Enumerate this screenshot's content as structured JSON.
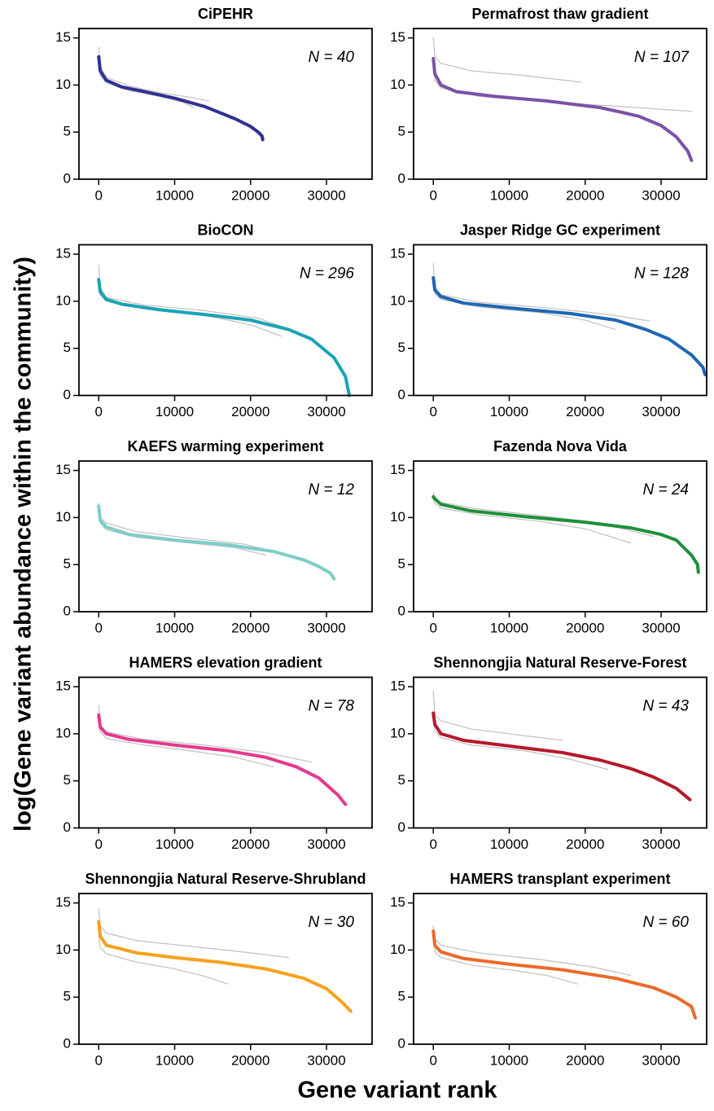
{
  "y_label": "log(Gene variant abundance within the community)",
  "x_label": "Gene variant rank",
  "chart_data": [
    {
      "type": "line",
      "title": "CiPEHR",
      "annotation": "N = 40",
      "xlim": [
        -2600,
        36000
      ],
      "ylim": [
        0,
        16
      ],
      "xticks": [
        0,
        10000,
        20000,
        30000
      ],
      "yticks": [
        0,
        5,
        10,
        15
      ],
      "series": [
        {
          "color": "#c4c4c4",
          "x": [
            0,
            200,
            1000,
            4000,
            8000,
            12000,
            14500
          ],
          "values": [
            14,
            12,
            10.8,
            9.9,
            9.2,
            8.7,
            8.3
          ]
        },
        {
          "color": "#c4c4c4",
          "x": [
            0,
            200,
            1000,
            4000,
            8000,
            11000,
            12500
          ],
          "values": [
            12.5,
            11,
            10.2,
            9.4,
            8.8,
            8.2,
            7.6
          ]
        },
        {
          "color": "#2e3192",
          "x": [
            0,
            200,
            1000,
            3000,
            6000,
            10000,
            14000,
            18000,
            20000,
            21000,
            21500,
            21600
          ],
          "values": [
            13,
            11.5,
            10.5,
            9.8,
            9.3,
            8.6,
            7.7,
            6.4,
            5.6,
            5,
            4.6,
            4.2
          ]
        }
      ]
    },
    {
      "type": "line",
      "title": "Permafrost thaw gradient",
      "annotation": "N = 107",
      "xlim": [
        -2600,
        36000
      ],
      "ylim": [
        0,
        16
      ],
      "xticks": [
        0,
        10000,
        20000,
        30000
      ],
      "yticks": [
        0,
        5,
        10,
        15
      ],
      "series": [
        {
          "color": "#c4c4c4",
          "x": [
            0,
            200,
            1000,
            5000,
            12000,
            19500
          ],
          "values": [
            15,
            13,
            12.3,
            11.5,
            11,
            10.3
          ]
        },
        {
          "color": "#c4c4c4",
          "x": [
            0,
            200,
            1000,
            6000,
            15000,
            25000,
            34000
          ],
          "values": [
            12,
            10.5,
            9.7,
            8.8,
            8.2,
            7.7,
            7.2
          ]
        },
        {
          "color": "#7b52a6",
          "x": [
            0,
            200,
            1000,
            3000,
            8000,
            15000,
            22000,
            27000,
            30000,
            32000,
            33500,
            34000
          ],
          "values": [
            12.8,
            11.2,
            10,
            9.3,
            8.8,
            8.3,
            7.6,
            6.7,
            5.7,
            4.5,
            3,
            2
          ]
        }
      ]
    },
    {
      "type": "line",
      "title": "BioCON",
      "annotation": "N = 296",
      "xlim": [
        -2600,
        36000
      ],
      "ylim": [
        0,
        16
      ],
      "xticks": [
        0,
        10000,
        20000,
        30000
      ],
      "yticks": [
        0,
        5,
        10,
        15
      ],
      "series": [
        {
          "color": "#c4c4c4",
          "x": [
            0,
            200,
            1000,
            6000,
            14000,
            21000,
            26000
          ],
          "values": [
            13.8,
            11.5,
            10.4,
            9.6,
            9,
            8.2,
            6.8
          ]
        },
        {
          "color": "#c4c4c4",
          "x": [
            0,
            200,
            1000,
            6000,
            14000,
            20000,
            24000
          ],
          "values": [
            12,
            10.7,
            10,
            9.2,
            8.5,
            7.5,
            6.3
          ]
        },
        {
          "color": "#1aa3b5",
          "x": [
            0,
            200,
            1000,
            3000,
            8000,
            15000,
            20000,
            25000,
            28000,
            31000,
            32500,
            33000
          ],
          "values": [
            12.3,
            11,
            10.2,
            9.7,
            9.1,
            8.5,
            8,
            7,
            6,
            4,
            2,
            0
          ]
        }
      ]
    },
    {
      "type": "line",
      "title": "Jasper Ridge GC experiment",
      "annotation": "N = 128",
      "xlim": [
        -2600,
        36000
      ],
      "ylim": [
        0,
        16
      ],
      "xticks": [
        0,
        10000,
        20000,
        30000
      ],
      "yticks": [
        0,
        5,
        10,
        15
      ],
      "series": [
        {
          "color": "#c4c4c4",
          "x": [
            0,
            200,
            1000,
            6000,
            15000,
            23000,
            28500
          ],
          "values": [
            14,
            11.5,
            10.7,
            9.9,
            9.3,
            8.6,
            7.9
          ]
        },
        {
          "color": "#c4c4c4",
          "x": [
            0,
            200,
            1000,
            6000,
            14000,
            20000,
            24000
          ],
          "values": [
            12,
            10.8,
            10.2,
            9.4,
            8.8,
            8,
            7
          ]
        },
        {
          "color": "#1f66b5",
          "x": [
            0,
            200,
            1000,
            4000,
            10000,
            18000,
            24000,
            28000,
            31000,
            34000,
            35500,
            35800
          ],
          "values": [
            12.5,
            11.2,
            10.5,
            9.8,
            9.3,
            8.7,
            8,
            7,
            6,
            4.3,
            3,
            2.2
          ]
        }
      ]
    },
    {
      "type": "line",
      "title": "KAEFS warming experiment",
      "annotation": "N = 12",
      "xlim": [
        -2600,
        36000
      ],
      "ylim": [
        0,
        16
      ],
      "xticks": [
        0,
        10000,
        20000,
        30000
      ],
      "yticks": [
        0,
        5,
        10,
        15
      ],
      "series": [
        {
          "color": "#c4c4c4",
          "x": [
            0,
            200,
            1000,
            5000,
            12000,
            19000,
            23500
          ],
          "values": [
            11.5,
            10,
            9.4,
            8.5,
            7.8,
            7.2,
            6.3
          ]
        },
        {
          "color": "#c4c4c4",
          "x": [
            0,
            200,
            1000,
            5000,
            12000,
            18000,
            22000
          ],
          "values": [
            10.8,
            9.4,
            8.7,
            7.9,
            7.3,
            6.8,
            6
          ]
        },
        {
          "color": "#7ecdc8",
          "x": [
            0,
            200,
            1000,
            4000,
            10000,
            17000,
            23000,
            27000,
            29000,
            30500,
            31000
          ],
          "values": [
            11.2,
            9.7,
            9,
            8.2,
            7.6,
            7.1,
            6.4,
            5.5,
            4.8,
            4.1,
            3.5
          ]
        }
      ]
    },
    {
      "type": "line",
      "title": "Fazenda Nova Vida",
      "annotation": "N = 24",
      "xlim": [
        -2600,
        36000
      ],
      "ylim": [
        0,
        16
      ],
      "xticks": [
        0,
        10000,
        20000,
        30000
      ],
      "yticks": [
        0,
        5,
        10,
        15
      ],
      "series": [
        {
          "color": "#c4c4c4",
          "x": [
            0,
            200,
            1000,
            6000,
            14000,
            22000,
            29000
          ],
          "values": [
            12.6,
            12,
            11.6,
            10.9,
            10.2,
            9.4,
            8
          ]
        },
        {
          "color": "#c4c4c4",
          "x": [
            0,
            200,
            1000,
            6000,
            14000,
            20000,
            26000
          ],
          "values": [
            12,
            11.5,
            11,
            10.3,
            9.6,
            8.8,
            7.3
          ]
        },
        {
          "color": "#1f8f3a",
          "x": [
            0,
            200,
            1000,
            5000,
            12000,
            20000,
            26000,
            30000,
            32000,
            34000,
            34800,
            34900
          ],
          "values": [
            12.2,
            12,
            11.4,
            10.7,
            10.1,
            9.5,
            8.9,
            8.2,
            7.6,
            6,
            5,
            4.2
          ]
        }
      ]
    },
    {
      "type": "line",
      "title": "HAMERS elevation gradient",
      "annotation": "N = 78",
      "xlim": [
        -2600,
        36000
      ],
      "ylim": [
        0,
        16
      ],
      "xticks": [
        0,
        10000,
        20000,
        30000
      ],
      "yticks": [
        0,
        5,
        10,
        15
      ],
      "series": [
        {
          "color": "#c4c4c4",
          "x": [
            0,
            200,
            1000,
            6000,
            14000,
            22000,
            28000
          ],
          "values": [
            13,
            11,
            10.2,
            9.4,
            8.8,
            8,
            7
          ]
        },
        {
          "color": "#c4c4c4",
          "x": [
            0,
            200,
            1000,
            6000,
            12000,
            18000,
            23000
          ],
          "values": [
            11.5,
            10.2,
            9.5,
            8.8,
            8.2,
            7.5,
            6.5
          ]
        },
        {
          "color": "#e6398c",
          "x": [
            0,
            200,
            1000,
            4000,
            10000,
            17000,
            22000,
            26000,
            29000,
            31500,
            32500
          ],
          "values": [
            12,
            10.7,
            10,
            9.4,
            8.8,
            8.2,
            7.5,
            6.5,
            5.3,
            3.5,
            2.5
          ]
        }
      ]
    },
    {
      "type": "line",
      "title": "Shennongjia Natural Reserve-Forest",
      "annotation": "N = 43",
      "xlim": [
        -2600,
        36000
      ],
      "ylim": [
        0,
        16
      ],
      "xticks": [
        0,
        10000,
        20000,
        30000
      ],
      "yticks": [
        0,
        5,
        10,
        15
      ],
      "series": [
        {
          "color": "#c4c4c4",
          "x": [
            0,
            200,
            1000,
            5000,
            11000,
            17000
          ],
          "values": [
            14.5,
            12,
            11.4,
            10.5,
            9.9,
            9.3
          ]
        },
        {
          "color": "#c4c4c4",
          "x": [
            0,
            200,
            1000,
            5000,
            12000,
            18000,
            23000
          ],
          "values": [
            11.5,
            10.3,
            9.6,
            8.8,
            8.2,
            7.3,
            6.2
          ]
        },
        {
          "color": "#b5182b",
          "x": [
            0,
            200,
            1000,
            4000,
            10000,
            17000,
            22000,
            26000,
            29000,
            32000,
            33800
          ],
          "values": [
            12.2,
            11,
            10,
            9.3,
            8.7,
            8,
            7.2,
            6.3,
            5.4,
            4.2,
            3
          ]
        }
      ]
    },
    {
      "type": "line",
      "title": "Shennongjia Natural Reserve-Shrubland",
      "annotation": "N = 30",
      "xlim": [
        -2600,
        36000
      ],
      "ylim": [
        0,
        16
      ],
      "xticks": [
        0,
        10000,
        20000,
        30000
      ],
      "yticks": [
        0,
        5,
        10,
        15
      ],
      "series": [
        {
          "color": "#c4c4c4",
          "x": [
            0,
            200,
            1000,
            5000,
            12000,
            19000,
            25000
          ],
          "values": [
            14.4,
            12.5,
            11.8,
            11,
            10.4,
            9.8,
            9.2
          ]
        },
        {
          "color": "#c4c4c4",
          "x": [
            0,
            200,
            1000,
            5000,
            10000,
            14000,
            17000
          ],
          "values": [
            11.8,
            10.3,
            9.6,
            8.7,
            8,
            7.2,
            6.4
          ]
        },
        {
          "color": "#f5a21c",
          "x": [
            0,
            200,
            1000,
            5000,
            10000,
            16000,
            22000,
            27000,
            30000,
            32000,
            33200
          ],
          "values": [
            13,
            11.5,
            10.5,
            9.7,
            9.2,
            8.7,
            8,
            7,
            5.9,
            4.5,
            3.5
          ]
        }
      ]
    },
    {
      "type": "line",
      "title": "HAMERS transplant experiment",
      "annotation": "N = 60",
      "xlim": [
        -2600,
        36000
      ],
      "ylim": [
        0,
        16
      ],
      "xticks": [
        0,
        10000,
        20000,
        30000
      ],
      "yticks": [
        0,
        5,
        10,
        15
      ],
      "series": [
        {
          "color": "#c4c4c4",
          "x": [
            0,
            200,
            1000,
            6000,
            14000,
            21000,
            26000
          ],
          "values": [
            12.5,
            11.2,
            10.5,
            9.7,
            9,
            8.2,
            7.3
          ]
        },
        {
          "color": "#c4c4c4",
          "x": [
            0,
            200,
            1000,
            5000,
            10000,
            15000,
            19000
          ],
          "values": [
            11,
            9.8,
            9.2,
            8.4,
            7.9,
            7.3,
            6.4
          ]
        },
        {
          "color": "#ea6a2a",
          "x": [
            0,
            200,
            1000,
            4000,
            10000,
            17000,
            24000,
            29000,
            32000,
            34000,
            34500
          ],
          "values": [
            12,
            10.5,
            9.8,
            9.1,
            8.5,
            7.9,
            7,
            6,
            5,
            4,
            2.8
          ]
        }
      ]
    }
  ]
}
